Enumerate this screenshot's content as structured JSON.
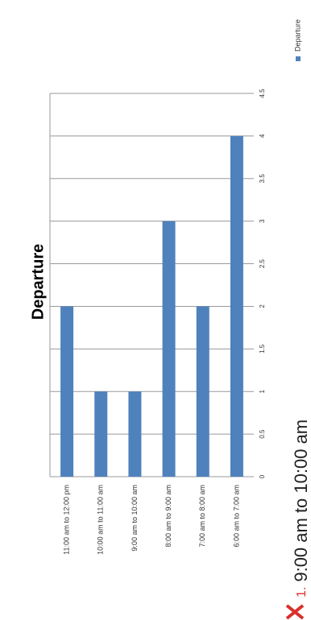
{
  "chart_data": {
    "type": "bar",
    "title": "Departure",
    "categories": [
      "11:00 am to 12:00 pm",
      "10:00 am to 11:00 am",
      "9:00 am to 10:00 am",
      "8:00 am to 9:00 am",
      "7:00 am to 8:00 am",
      "6:00 am to 7:00 am"
    ],
    "series": [
      {
        "name": "Departure",
        "color": "#4f81bd",
        "values": [
          2,
          1,
          1,
          3,
          2,
          4
        ]
      }
    ],
    "ylim": [
      0,
      4.5
    ],
    "yticks": [
      0,
      0.5,
      1,
      1.5,
      2,
      2.5,
      3,
      3.5,
      4,
      4.5
    ],
    "grid": true
  },
  "answer": {
    "number": "1.",
    "text": "9:00 am to 10:00 am"
  }
}
